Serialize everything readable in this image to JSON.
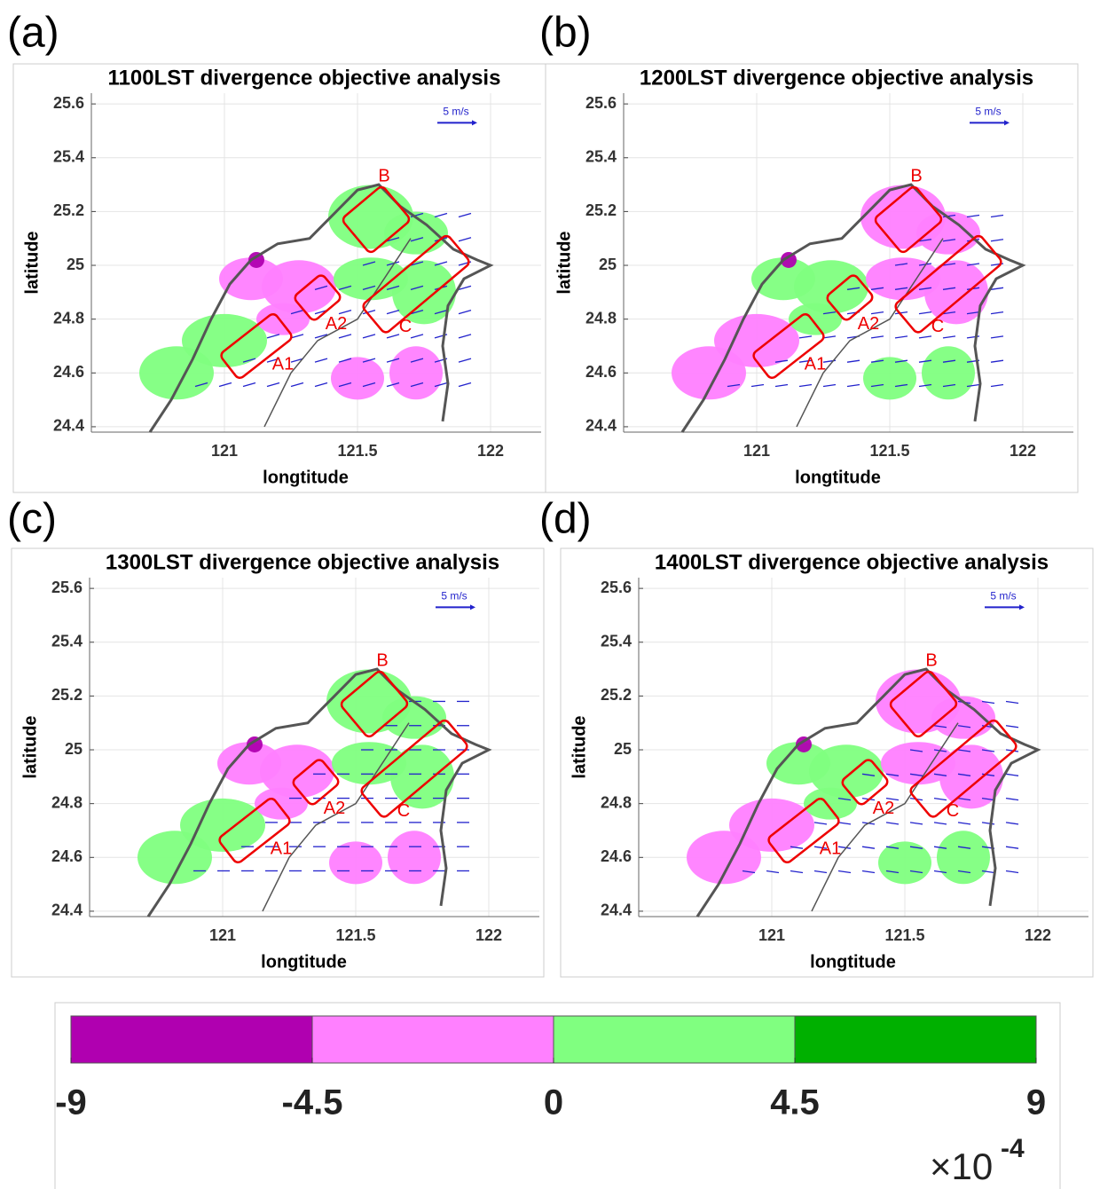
{
  "panels": [
    {
      "label": "(a)",
      "title": "1100LST divergence objective analysis",
      "xlabel": "longtitude",
      "ylabel": "latitude",
      "xlim": [
        120.5,
        122.19
      ],
      "ylim": [
        24.38,
        25.64
      ],
      "xticks": [
        121,
        121.5,
        122
      ],
      "yticks": [
        24.4,
        24.6,
        24.8,
        25,
        25.2,
        25.4,
        25.6
      ],
      "scale_label": "5 m/s",
      "regions": [
        "B",
        "A2",
        "A1",
        "C"
      ]
    },
    {
      "label": "(b)",
      "title": "1200LST divergence objective analysis",
      "xlabel": "longtitude",
      "ylabel": "latitude",
      "xlim": [
        120.5,
        122.19
      ],
      "ylim": [
        24.38,
        25.64
      ],
      "xticks": [
        121,
        121.5,
        122
      ],
      "yticks": [
        24.4,
        24.6,
        24.8,
        25,
        25.2,
        25.4,
        25.6
      ],
      "scale_label": "5 m/s",
      "regions": [
        "B",
        "A2",
        "A1",
        "C"
      ]
    },
    {
      "label": "(c)",
      "title": "1300LST divergence objective analysis",
      "xlabel": "longtitude",
      "ylabel": "latitude",
      "xlim": [
        120.5,
        122.19
      ],
      "ylim": [
        24.38,
        25.64
      ],
      "xticks": [
        121,
        121.5,
        122
      ],
      "yticks": [
        24.4,
        24.6,
        24.8,
        25,
        25.2,
        25.4,
        25.6
      ],
      "scale_label": "5 m/s",
      "regions": [
        "B",
        "A2",
        "A1",
        "C"
      ]
    },
    {
      "label": "(d)",
      "title": "1400LST divergence objective analysis",
      "xlabel": "longtitude",
      "ylabel": "latitude",
      "xlim": [
        120.5,
        122.19
      ],
      "ylim": [
        24.38,
        25.64
      ],
      "xticks": [
        121,
        121.5,
        122
      ],
      "yticks": [
        24.4,
        24.6,
        24.8,
        25,
        25.2,
        25.4,
        25.6
      ],
      "scale_label": "5 m/s",
      "regions": [
        "B",
        "A2",
        "A1",
        "C"
      ]
    }
  ],
  "colorbar": {
    "colors": [
      "#b000b0",
      "#ff80ff",
      "#80ff80",
      "#00b000"
    ],
    "ticks": [
      -9,
      -4.5,
      0,
      4.5,
      9
    ],
    "multiplier": "×10",
    "exponent": "-4"
  }
}
